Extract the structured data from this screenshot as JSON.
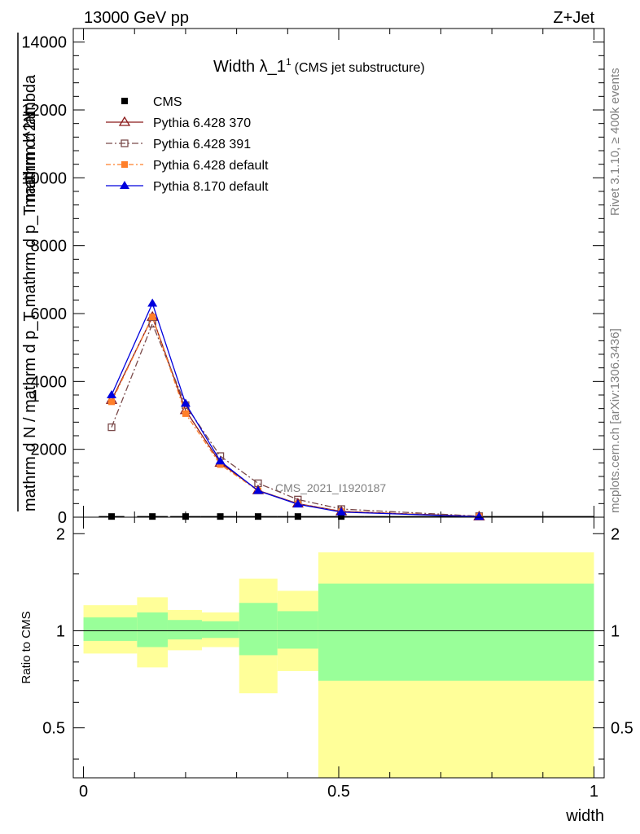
{
  "header": {
    "left": "13000 GeV pp",
    "right": "Z+Jet"
  },
  "side": {
    "rivet": "Rivet 3.1.10, ≥ 400k events",
    "mcplots": "mcplots.cern.ch [arXiv:1306.3436]"
  },
  "chart_data": [
    {
      "type": "line",
      "title_main": "Width λ_1",
      "title_sup": "1",
      "title_note": "(CMS jet substructure)",
      "watermark": "CMS_2021_I1920187",
      "ylabel_num": "1",
      "ylabel_den": "mathrm d N / mathrm d p_T mathrm d p_T mathrm d lambda",
      "ylabel_frac_num": "mathrm d^2N",
      "ylim": [
        0,
        14400
      ],
      "xlim": [
        -0.02,
        1.02
      ],
      "yticks": [
        0,
        2000,
        4000,
        6000,
        8000,
        10000,
        12000,
        14000
      ],
      "ytick_labels": [
        "0",
        "2000",
        "4000",
        "6000",
        "8000",
        "10000",
        "12000",
        "14000"
      ],
      "legend_position": "top-left",
      "series": [
        {
          "name": "CMS",
          "color": "#000000",
          "marker": "square-filled",
          "x": [
            0.055,
            0.135,
            0.2,
            0.268,
            0.342,
            0.42,
            0.505,
            0.775
          ],
          "y": [
            20,
            20,
            20,
            20,
            20,
            20,
            20,
            20
          ],
          "xerr": [
            0.025,
            0.03,
            0.03,
            0.038,
            0.038,
            0.04,
            0.045,
            0.225
          ]
        },
        {
          "name": "Pythia 6.428 370",
          "color": "#8b1a1a",
          "marker": "triangle-open",
          "x": [
            0.055,
            0.135,
            0.2,
            0.268,
            0.342,
            0.42,
            0.505,
            0.775
          ],
          "y": [
            3450,
            5900,
            3150,
            1600,
            790,
            400,
            170,
            20
          ]
        },
        {
          "name": "Pythia 6.428 391",
          "color": "#7a4a4a",
          "marker": "square-open",
          "dash": "8,3,2,3",
          "x": [
            0.055,
            0.135,
            0.2,
            0.268,
            0.342,
            0.42,
            0.505,
            0.775
          ],
          "y": [
            2650,
            5700,
            3300,
            1800,
            1000,
            520,
            240,
            30
          ]
        },
        {
          "name": "Pythia 6.428 default",
          "color": "#ff7f2a",
          "marker": "square-filled",
          "dash": "6,3,2,3",
          "x": [
            0.055,
            0.135,
            0.2,
            0.268,
            0.342,
            0.42,
            0.505,
            0.775
          ],
          "y": [
            3400,
            5900,
            3050,
            1550,
            780,
            390,
            160,
            20
          ]
        },
        {
          "name": "Pythia 8.170 default",
          "color": "#0000dd",
          "marker": "triangle-filled",
          "x": [
            0.055,
            0.135,
            0.2,
            0.268,
            0.342,
            0.42,
            0.505,
            0.775
          ],
          "y": [
            3600,
            6300,
            3350,
            1650,
            780,
            380,
            150,
            15
          ]
        }
      ]
    },
    {
      "type": "area",
      "ylabel": "Ratio to CMS",
      "xlabel": "width",
      "ylim": [
        0.35,
        2.25
      ],
      "xlim": [
        -0.02,
        1.02
      ],
      "yticks": [
        0.5,
        1,
        2
      ],
      "ytick_labels": [
        "0.5",
        "1",
        "2"
      ],
      "xticks": [
        0,
        0.5,
        1
      ],
      "xtick_labels": [
        "0",
        "0.5",
        "1"
      ],
      "reference": 1,
      "bins": [
        {
          "lo": 0.0,
          "hi": 0.105,
          "inner": [
            0.93,
            1.1
          ],
          "outer": [
            0.85,
            1.2
          ]
        },
        {
          "lo": 0.105,
          "hi": 0.165,
          "inner": [
            0.89,
            1.14
          ],
          "outer": [
            0.77,
            1.27
          ]
        },
        {
          "lo": 0.165,
          "hi": 0.232,
          "inner": [
            0.94,
            1.08
          ],
          "outer": [
            0.87,
            1.16
          ]
        },
        {
          "lo": 0.232,
          "hi": 0.305,
          "inner": [
            0.95,
            1.07
          ],
          "outer": [
            0.89,
            1.14
          ]
        },
        {
          "lo": 0.305,
          "hi": 0.38,
          "inner": [
            0.84,
            1.22
          ],
          "outer": [
            0.64,
            1.45
          ]
        },
        {
          "lo": 0.38,
          "hi": 0.46,
          "inner": [
            0.88,
            1.15
          ],
          "outer": [
            0.75,
            1.33
          ]
        },
        {
          "lo": 0.46,
          "hi": 1.0,
          "inner": [
            0.7,
            1.4
          ],
          "outer": [
            0.35,
            1.75
          ]
        }
      ],
      "inner_color": "#99ff99",
      "outer_color": "#ffff99"
    }
  ]
}
